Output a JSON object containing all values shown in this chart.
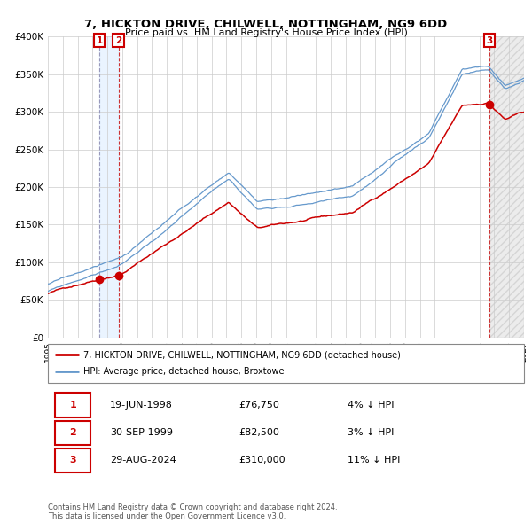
{
  "title_line1": "7, HICKTON DRIVE, CHILWELL, NOTTINGHAM, NG9 6DD",
  "title_line2": "Price paid vs. HM Land Registry's House Price Index (HPI)",
  "ylabel_ticks": [
    "£0",
    "£50K",
    "£100K",
    "£150K",
    "£200K",
    "£250K",
    "£300K",
    "£350K",
    "£400K"
  ],
  "ytick_values": [
    0,
    50000,
    100000,
    150000,
    200000,
    250000,
    300000,
    350000,
    400000
  ],
  "ylim": [
    0,
    400000
  ],
  "sale_prices": [
    76750,
    82500,
    310000
  ],
  "sale_labels": [
    "1",
    "2",
    "3"
  ],
  "sale_date_nums": [
    1998.47,
    1999.75,
    2024.66
  ],
  "legend_line1": "7, HICKTON DRIVE, CHILWELL, NOTTINGHAM, NG9 6DD (detached house)",
  "legend_line2": "HPI: Average price, detached house, Broxtowe",
  "table_data": [
    [
      "1",
      "19-JUN-1998",
      "£76,750",
      "4% ↓ HPI"
    ],
    [
      "2",
      "30-SEP-1999",
      "£82,500",
      "3% ↓ HPI"
    ],
    [
      "3",
      "29-AUG-2024",
      "£310,000",
      "11% ↓ HPI"
    ]
  ],
  "footer": "Contains HM Land Registry data © Crown copyright and database right 2024.\nThis data is licensed under the Open Government Licence v3.0.",
  "hpi_color": "#6699cc",
  "price_color": "#cc0000",
  "background_color": "#ffffff",
  "grid_color": "#cccccc"
}
